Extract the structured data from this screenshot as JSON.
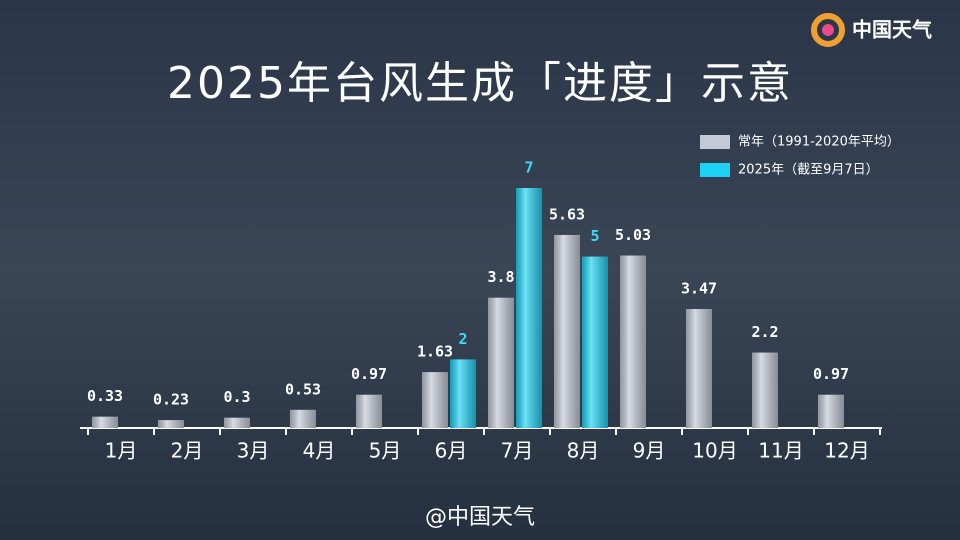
{
  "chart_data": {
    "type": "bar",
    "title": "2025年台风生成「进度」示意",
    "brand": "中国天气",
    "watermark": "@中国天气",
    "categories": [
      "1月",
      "2月",
      "3月",
      "4月",
      "5月",
      "6月",
      "7月",
      "8月",
      "9月",
      "10月",
      "11月",
      "12月"
    ],
    "series": [
      {
        "name": "常年（1991-2020年平均）",
        "color": "#c3cad6",
        "label_color": "#ffffff",
        "values": [
          0.33,
          0.23,
          0.3,
          0.53,
          0.97,
          1.63,
          3.8,
          5.63,
          5.03,
          3.47,
          2.2,
          0.97
        ]
      },
      {
        "name": "2025年（截至9月7日）",
        "color": "#1ed2f5",
        "label_color": "#3fd8f5",
        "values": [
          null,
          null,
          null,
          null,
          null,
          2,
          7,
          5,
          null,
          null,
          null,
          null
        ]
      }
    ],
    "legend": "top-right"
  }
}
